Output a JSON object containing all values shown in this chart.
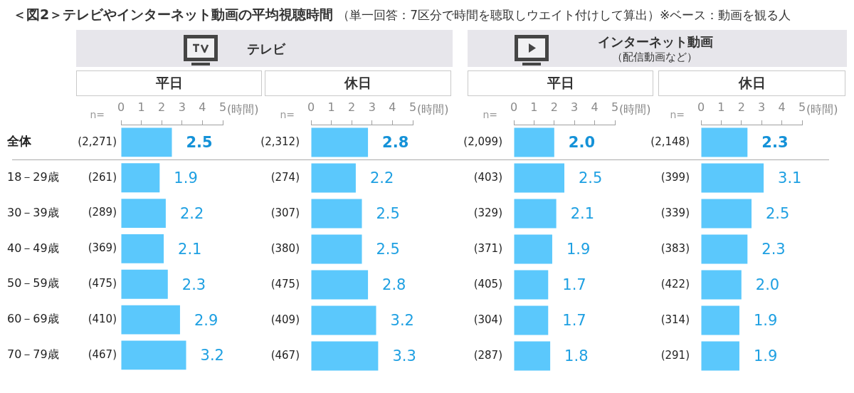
{
  "chart_data": [
    {
      "type": "bar",
      "orientation": "horizontal",
      "title": "平日",
      "categories": [
        "全体",
        "18－29歳",
        "30－39歳",
        "40－49歳",
        "50－59歳",
        "60－69歳",
        "70－79歳"
      ],
      "values": [
        2.5,
        1.9,
        2.2,
        2.1,
        2.3,
        2.9,
        3.2
      ],
      "value_labels": [
        "2.5",
        "1.9",
        "2.2",
        "2.1",
        "2.3",
        "2.9",
        "3.2"
      ],
      "color": "#5bc8fc",
      "xlim": [
        0,
        5
      ],
      "xticks": [
        0,
        1,
        2,
        3,
        4,
        5
      ],
      "xlabel": "(時間)",
      "grid": false,
      "legend": false,
      "annotations": [
        "＜図2＞テレビやインターネット動画の平均視聴時間",
        "（単一回答：7区分で時間を聴取しウエイト付けして算出）※ベース：動画を観る人",
        "テレビ",
        "n=",
        "(2,271)",
        "(261)",
        "(289)",
        "(369)",
        "(475)",
        "(410)",
        "(467)"
      ]
    },
    {
      "type": "bar",
      "orientation": "horizontal",
      "title": "休日",
      "categories": [
        "(2,312)",
        "(274)",
        "(307)",
        "(380)",
        "(475)",
        "(409)",
        "(467)"
      ],
      "values": [
        2.8,
        2.2,
        2.5,
        2.5,
        2.8,
        3.2,
        3.3
      ],
      "value_labels": [
        "2.8",
        "2.2",
        "2.5",
        "2.5",
        "2.8",
        "3.2",
        "3.3"
      ],
      "color": "#5bc8fc",
      "xlim": [
        0,
        5
      ],
      "xticks": [
        0,
        1,
        2,
        3,
        4,
        5
      ],
      "xlabel": "(時間)",
      "grid": false,
      "legend": false,
      "annotations": [
        "n="
      ]
    },
    {
      "type": "bar",
      "orientation": "horizontal",
      "title": "平日",
      "categories": [
        "(2,099)",
        "(403)",
        "(329)",
        "(371)",
        "(405)",
        "(304)",
        "(287)"
      ],
      "values": [
        2.0,
        2.5,
        2.1,
        1.9,
        1.7,
        1.7,
        1.8
      ],
      "value_labels": [
        "2.0",
        "2.5",
        "2.1",
        "1.9",
        "1.7",
        "1.7",
        "1.8"
      ],
      "color": "#5bc8fc",
      "xlim": [
        0,
        5
      ],
      "xticks": [
        0,
        1,
        2,
        3,
        4,
        5
      ],
      "xlabel": "(時間)",
      "grid": false,
      "legend": false,
      "annotations": [
        "インターネット動画",
        "（配信動画など）",
        "n="
      ]
    },
    {
      "type": "bar",
      "orientation": "horizontal",
      "title": "休日",
      "categories": [
        "(2,148)",
        "(399)",
        "(339)",
        "(383)",
        "(422)",
        "(314)",
        "(291)"
      ],
      "values": [
        2.3,
        3.1,
        2.5,
        2.3,
        2.0,
        1.9,
        1.9
      ],
      "value_labels": [
        "2.3",
        "3.1",
        "2.5",
        "2.3",
        "2.0",
        "1.9",
        "1.9"
      ],
      "color": "#5bc8fc",
      "xlim": [
        0,
        5
      ],
      "xticks": [
        0,
        1,
        2,
        3,
        4,
        5
      ],
      "xlabel": "(時間)",
      "grid": false,
      "legend": false,
      "annotations": [
        "n="
      ]
    }
  ]
}
